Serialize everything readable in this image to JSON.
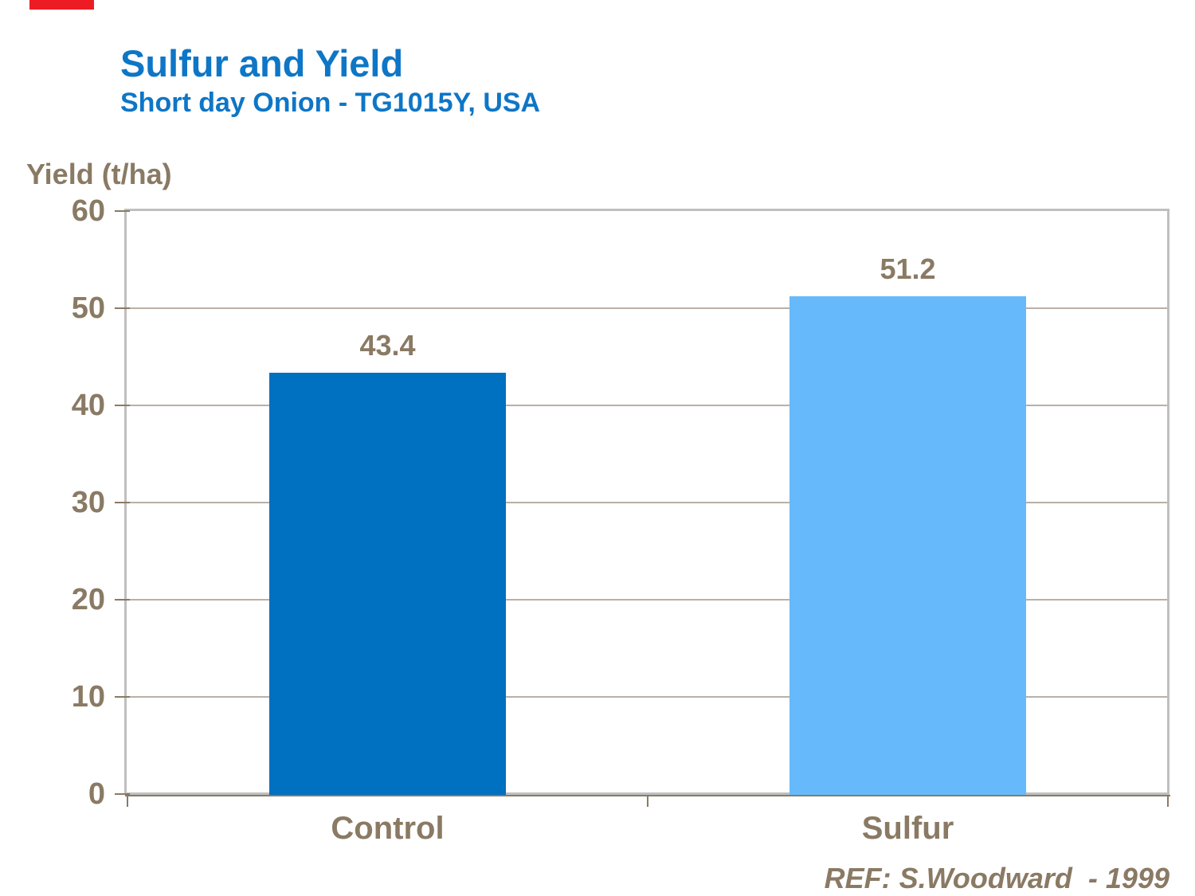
{
  "slide": {
    "title": "Sulfur and Yield",
    "subtitle": "Short day Onion - TG1015Y, USA",
    "reference": "REF: S.Woodward  - 1999"
  },
  "colors": {
    "title_blue": "#0E76C6",
    "text_brown": "#8A7A64",
    "plot_border_silver": "#BFBFBF",
    "gridline": "#B9B0A5",
    "red_accent": "#ED1C24",
    "control_bar": "#0070C0",
    "sulfur_bar": "#66BAFB"
  },
  "chart_data": {
    "type": "bar",
    "title": "Sulfur and Yield",
    "subtitle": "Short day Onion - TG1015Y, USA",
    "ylabel": "Yield (t/ha)",
    "xlabel": "",
    "categories": [
      "Control",
      "Sulfur"
    ],
    "values": [
      43.4,
      51.2
    ],
    "value_labels": [
      "43.4",
      "51.2"
    ],
    "bar_colors": [
      "#0070C0",
      "#66BAFB"
    ],
    "ylim": [
      0,
      60
    ],
    "yticks": [
      0,
      10,
      20,
      30,
      40,
      50,
      60
    ],
    "grid": "horizontal gridlines on",
    "legend": "none",
    "annotation": "REF: S.Woodward  - 1999"
  }
}
